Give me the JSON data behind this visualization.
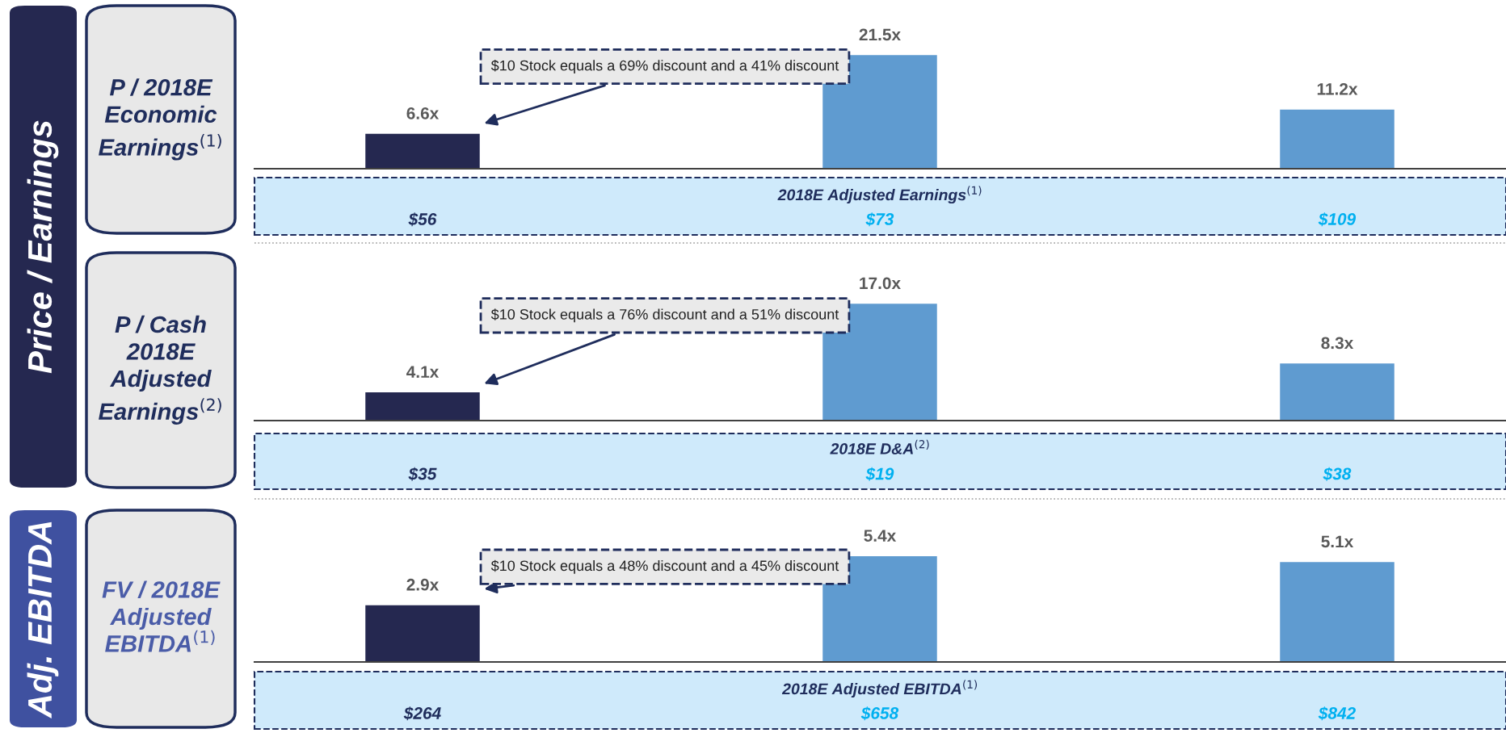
{
  "chart_data": [
    {
      "type": "bar",
      "title": "Price / Earnings",
      "ylabel": "P / 2018E Economic Earnings$^{(1)}$",
      "categories": [
        null,
        null,
        null
      ],
      "values": [
        6.6,
        21.5,
        11.2
      ],
      "colors": [
        "#252850",
        "#5f9bd0",
        "#5f9bd0"
      ],
      "value_labels": [
        "6.6x",
        "21.5x",
        "11.2x"
      ],
      "annotations": [
        "$10 Stock equals a 69% discount and a 41% discount",
        "2018E Adjusted Earnings$^{(1)}$",
        "$56",
        "$73",
        "$109"
      ]
    },
    {
      "type": "bar",
      "ylabel": "P / Cash 2018E Adjusted Earnings$^{(2)}$",
      "categories": [
        null,
        null,
        null
      ],
      "values": [
        4.1,
        17.0,
        8.3
      ],
      "colors": [
        "#252850",
        "#5f9bd0",
        "#5f9bd0"
      ],
      "value_labels": [
        "4.1x",
        "17.0x",
        "8.3x"
      ],
      "annotations": [
        "$10 Stock equals a 76% discount and a 51% discount",
        "2018E D&A$^{(2)}$",
        "$35",
        "$19",
        "$38"
      ]
    },
    {
      "type": "bar",
      "title": "Adj. EBITDA",
      "ylabel": "FV / 2018E Adjusted EBITDA$^{(1)}$",
      "categories": [
        null,
        null,
        null
      ],
      "values": [
        2.9,
        5.4,
        5.1
      ],
      "colors": [
        "#252850",
        "#5f9bd0",
        "#5f9bd0"
      ],
      "value_labels": [
        "2.9x",
        "5.4x",
        "5.1x"
      ],
      "annotations": [
        "$10 Stock equals a 48% discount and a 45% discount",
        "2018E Adjusted EBITDA$^{(1)}$",
        "$264",
        "$658",
        "$842"
      ]
    }
  ]
}
